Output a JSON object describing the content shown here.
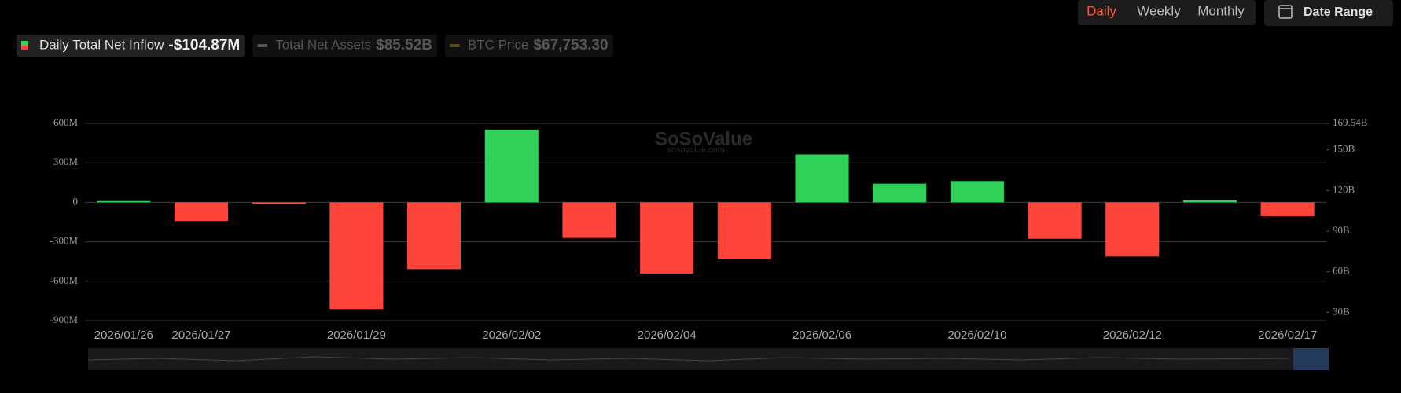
{
  "controls": {
    "periods": [
      "Daily",
      "Weekly",
      "Monthly"
    ],
    "active_period": "Daily",
    "date_range": "Date Range"
  },
  "chart_data": {
    "type": "bar",
    "legend": [
      {
        "name": "Daily Total Net Inflow",
        "value": "-$104.87M",
        "active": true
      },
      {
        "name": "Total Net Assets",
        "value": "$85.52B",
        "active": false
      },
      {
        "name": "BTC Price",
        "value": "$67,753.30",
        "active": false
      }
    ],
    "watermark": "SoSoValue",
    "watermark_url": "sosovalue.com",
    "categories": [
      "2026/01/26",
      "2026/01/27",
      null,
      "2026/01/29",
      null,
      "2026/02/02",
      null,
      "2026/02/04",
      null,
      "2026/02/06",
      null,
      "2026/02/10",
      null,
      "2026/02/12",
      null,
      "2026/02/17"
    ],
    "values": [
      10,
      -142,
      -15,
      -812,
      -508,
      553,
      -270,
      -541,
      -432,
      364,
      142,
      162,
      -277,
      -412,
      15,
      -104.87
    ],
    "colors": {
      "positive": "#30d158",
      "negative": "#ff453a"
    },
    "ylim": [
      -900,
      600
    ],
    "yticks": [
      {
        "value": -900,
        "label": "-900M"
      },
      {
        "value": -600,
        "label": "-600M"
      },
      {
        "value": -300,
        "label": "-300M"
      },
      0,
      {
        "value": 300,
        "label": "300M"
      },
      {
        "value": 600,
        "label": "600M"
      }
    ],
    "y2lim": [
      23.8,
      169.54
    ],
    "y2ticks": [
      {
        "value": 30,
        "label": "30B"
      },
      {
        "value": 60,
        "label": "60B"
      },
      {
        "value": 90,
        "label": "90B"
      },
      {
        "value": 120,
        "label": "120B"
      },
      {
        "value": 150,
        "label": "150B"
      },
      {
        "value": 169.54,
        "label": "169.54B"
      }
    ],
    "grid": true
  }
}
